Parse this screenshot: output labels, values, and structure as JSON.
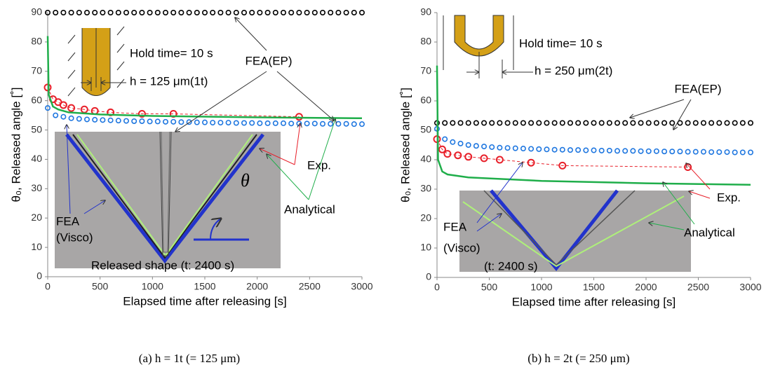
{
  "chart_data": [
    {
      "type": "scatter",
      "caption": "(a) h = 1t (= 125 μm)",
      "xlabel": "Elapsed time after releasing [s]",
      "ylabel": "θ₀, Released angle [˚]",
      "xlim": [
        0,
        3000
      ],
      "xticks": [
        0,
        500,
        1000,
        1500,
        2000,
        2500,
        3000
      ],
      "ylim": [
        0,
        90
      ],
      "yticks": [
        0,
        10,
        20,
        30,
        40,
        50,
        60,
        70,
        80,
        90
      ],
      "series": [
        {
          "name": "FEA(EP)",
          "color": "#000000",
          "style": "markers",
          "x": [
            0,
            75,
            150,
            225,
            300,
            375,
            450,
            525,
            600,
            675,
            750,
            825,
            900,
            975,
            1050,
            1125,
            1200,
            1275,
            1350,
            1425,
            1500,
            1575,
            1650,
            1725,
            1800,
            1875,
            1950,
            2025,
            2100,
            2175,
            2250,
            2325,
            2400,
            2475,
            2550,
            2625,
            2700,
            2775,
            2850,
            2925,
            3000
          ],
          "values": [
            90,
            90,
            90,
            90,
            90,
            90,
            90,
            90,
            90,
            90,
            90,
            90,
            90,
            90,
            90,
            90,
            90,
            90,
            90,
            90,
            90,
            90,
            90,
            90,
            90,
            90,
            90,
            90,
            90,
            90,
            90,
            90,
            90,
            90,
            90,
            90,
            90,
            90,
            90,
            90,
            90
          ]
        },
        {
          "color": "#1f77e0",
          "style": "markers",
          "x": [
            0,
            75,
            150,
            225,
            300,
            375,
            450,
            525,
            600,
            675,
            750,
            825,
            900,
            975,
            1050,
            1125,
            1200,
            1275,
            1350,
            1425,
            1500,
            1575,
            1650,
            1725,
            1800,
            1875,
            1950,
            2025,
            2100,
            2175,
            2250,
            2325,
            2400,
            2475,
            2550,
            2625,
            2700,
            2775,
            2850,
            2925,
            3000
          ],
          "values": [
            57.5,
            55,
            54.5,
            54,
            53.8,
            53.6,
            53.5,
            53.4,
            53.3,
            53.2,
            53.1,
            53.0,
            53,
            52.9,
            52.9,
            52.8,
            52.8,
            52.7,
            52.7,
            52.6,
            52.6,
            52.5,
            52.5,
            52.5,
            52.4,
            52.4,
            52.4,
            52.3,
            52.3,
            52.3,
            52.3,
            52.2,
            52.2,
            52.2,
            52.2,
            52.1,
            52.1,
            52.1,
            52.1,
            52,
            52
          ]
        },
        {
          "name": "Exp.",
          "color": "#e8202a",
          "style": "markers-dashed",
          "x": [
            0,
            50,
            100,
            150,
            225,
            350,
            450,
            600,
            900,
            1200,
            2400
          ],
          "values": [
            64.5,
            60.5,
            59.5,
            58.5,
            57.5,
            57,
            56.5,
            56,
            55.5,
            55.5,
            54.5
          ]
        },
        {
          "name": "Analytical",
          "color": "#1fae4a",
          "style": "line",
          "x": [
            0,
            10,
            50,
            100,
            200,
            500,
            1000,
            2000,
            3000
          ],
          "values": [
            82,
            62,
            58,
            57,
            56,
            55.3,
            54.8,
            54.3,
            54
          ]
        }
      ],
      "annotations": [
        "Hold time= 10 s",
        "h = 125 μm(1t)",
        "FEA",
        "(Visco)",
        "θ",
        "Released shape (t: 2400 s)"
      ]
    },
    {
      "type": "scatter",
      "caption": "(b) h = 2t (= 250 μm)",
      "xlabel": "Elapsed time after releasing [s]",
      "ylabel": "θ₀, Released angle [˚]",
      "xlim": [
        0,
        3000
      ],
      "xticks": [
        0,
        500,
        1000,
        1500,
        2000,
        2500,
        3000
      ],
      "ylim": [
        0,
        90
      ],
      "yticks": [
        0,
        10,
        20,
        30,
        40,
        50,
        60,
        70,
        80,
        90
      ],
      "series": [
        {
          "name": "FEA(EP)",
          "color": "#000000",
          "style": "markers",
          "x": [
            0,
            75,
            150,
            225,
            300,
            375,
            450,
            525,
            600,
            675,
            750,
            825,
            900,
            975,
            1050,
            1125,
            1200,
            1275,
            1350,
            1425,
            1500,
            1575,
            1650,
            1725,
            1800,
            1875,
            1950,
            2025,
            2100,
            2175,
            2250,
            2325,
            2400,
            2475,
            2550,
            2625,
            2700,
            2775,
            2850,
            2925,
            3000
          ],
          "values": [
            52.5,
            52.5,
            52.5,
            52.5,
            52.5,
            52.5,
            52.5,
            52.5,
            52.5,
            52.5,
            52.5,
            52.5,
            52.5,
            52.5,
            52.5,
            52.5,
            52.5,
            52.5,
            52.5,
            52.5,
            52.5,
            52.5,
            52.5,
            52.5,
            52.5,
            52.5,
            52.5,
            52.5,
            52.5,
            52.5,
            52.5,
            52.5,
            52.5,
            52.5,
            52.5,
            52.5,
            52.5,
            52.5,
            52.5,
            52.5,
            52.5
          ]
        },
        {
          "color": "#1f77e0",
          "style": "markers",
          "x": [
            0,
            75,
            150,
            225,
            300,
            375,
            450,
            525,
            600,
            675,
            750,
            825,
            900,
            975,
            1050,
            1125,
            1200,
            1275,
            1350,
            1425,
            1500,
            1575,
            1650,
            1725,
            1800,
            1875,
            1950,
            2025,
            2100,
            2175,
            2250,
            2325,
            2400,
            2475,
            2550,
            2625,
            2700,
            2775,
            2850,
            2925,
            3000
          ],
          "values": [
            50.5,
            47,
            46,
            45.5,
            45,
            44.7,
            44.5,
            44.3,
            44.1,
            44,
            43.9,
            43.8,
            43.7,
            43.6,
            43.5,
            43.4,
            43.4,
            43.3,
            43.3,
            43.2,
            43.2,
            43.1,
            43.1,
            43,
            43,
            43,
            42.9,
            42.9,
            42.9,
            42.8,
            42.8,
            42.8,
            42.7,
            42.7,
            42.7,
            42.6,
            42.6,
            42.6,
            42.5,
            42.5,
            42.5
          ]
        },
        {
          "name": "Exp.",
          "color": "#e8202a",
          "style": "markers-dashed",
          "x": [
            0,
            50,
            100,
            200,
            300,
            450,
            600,
            900,
            1200,
            2400
          ],
          "values": [
            47,
            43.5,
            42,
            41.5,
            41,
            40.5,
            40,
            39,
            38,
            37.5
          ]
        },
        {
          "name": "Analytical",
          "color": "#1fae4a",
          "style": "line",
          "x": [
            0,
            10,
            50,
            100,
            300,
            1000,
            2000,
            3000
          ],
          "values": [
            72,
            40,
            36,
            35,
            34,
            32.8,
            32,
            31.5
          ]
        }
      ],
      "annotations": [
        "Hold time= 10 s",
        "h = 250 μm(2t)",
        "FEA",
        "(Visco)",
        "(t: 2400 s)"
      ]
    }
  ]
}
